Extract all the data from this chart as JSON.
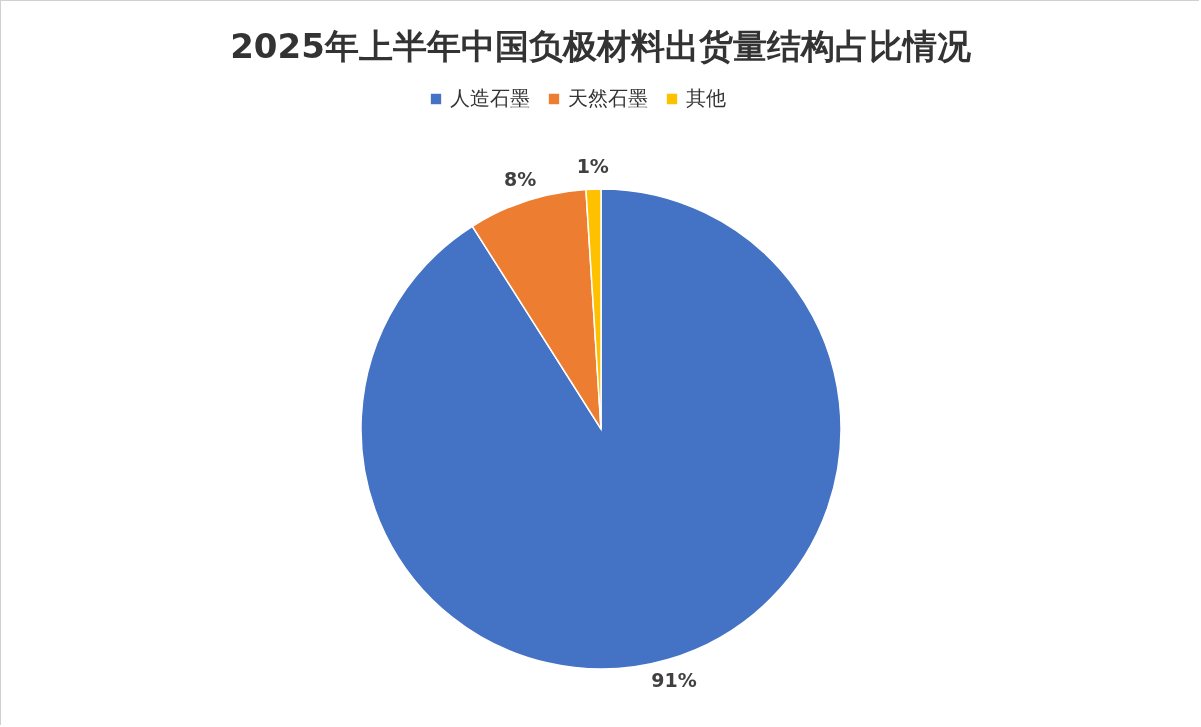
{
  "chart_data": {
    "type": "pie",
    "title": "2025年上半年中国负极材料出货量结构占比情况",
    "categories": [
      "人造石墨",
      "天然石墨",
      "其他"
    ],
    "values": [
      91,
      8,
      1
    ],
    "colors": [
      "#4472c4",
      "#ed7d31",
      "#ffc000"
    ],
    "value_labels": [
      "91%",
      "8%",
      "1%"
    ],
    "legend": "top"
  }
}
